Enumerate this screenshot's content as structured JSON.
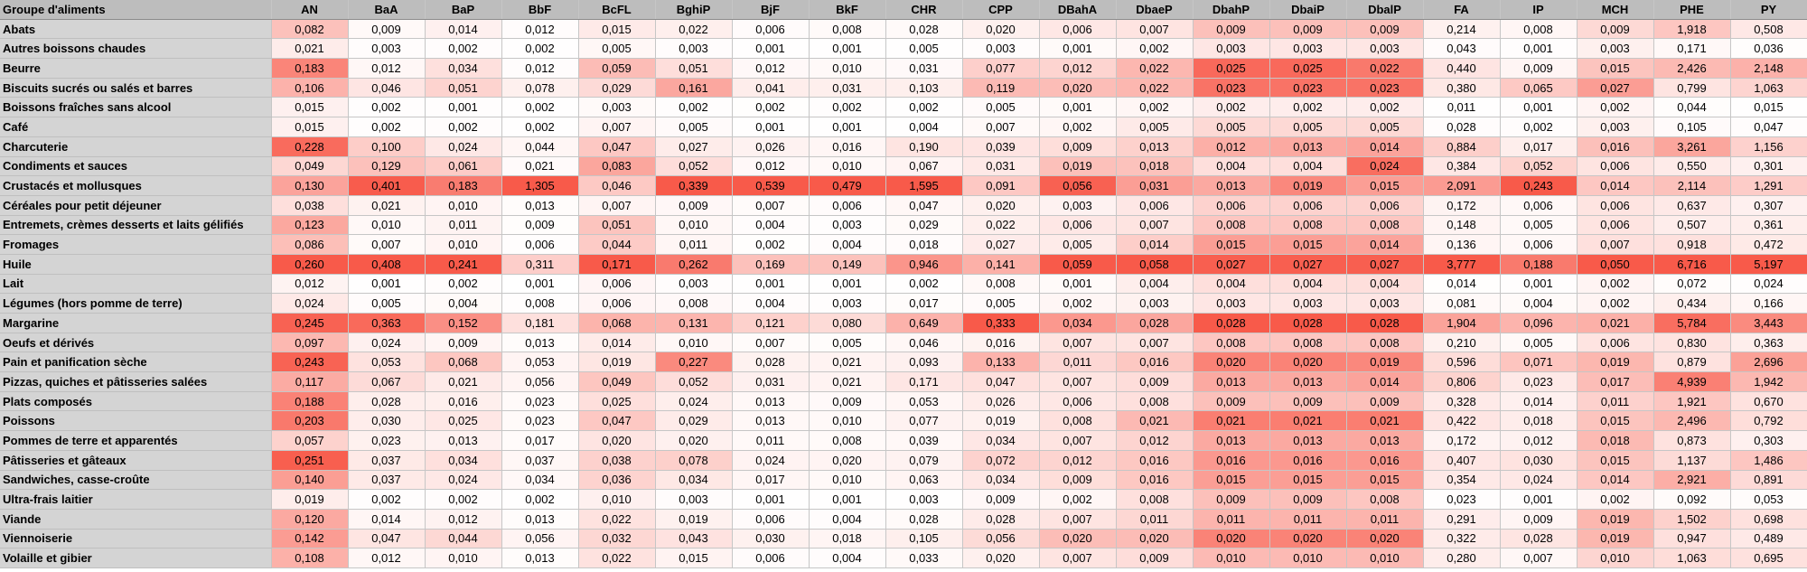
{
  "chart_data": {
    "type": "heatmap",
    "row_header": "Groupe d'aliments",
    "columns": [
      "AN",
      "BaA",
      "BaP",
      "BbF",
      "BcFL",
      "BghiP",
      "BjF",
      "BkF",
      "CHR",
      "CPP",
      "DBahA",
      "DbaeP",
      "DbahP",
      "DbaiP",
      "DbalP",
      "FA",
      "IP",
      "MCH",
      "PHE",
      "PY"
    ],
    "rows": [
      {
        "name": "Abats",
        "values": [
          "0,082",
          "0,009",
          "0,014",
          "0,012",
          "0,015",
          "0,022",
          "0,006",
          "0,008",
          "0,028",
          "0,020",
          "0,006",
          "0,007",
          "0,009",
          "0,009",
          "0,009",
          "0,214",
          "0,008",
          "0,009",
          "1,918",
          "0,508"
        ]
      },
      {
        "name": "Autres boissons chaudes",
        "values": [
          "0,021",
          "0,003",
          "0,002",
          "0,002",
          "0,005",
          "0,003",
          "0,001",
          "0,001",
          "0,005",
          "0,003",
          "0,001",
          "0,002",
          "0,003",
          "0,003",
          "0,003",
          "0,043",
          "0,001",
          "0,003",
          "0,171",
          "0,036"
        ]
      },
      {
        "name": "Beurre",
        "values": [
          "0,183",
          "0,012",
          "0,034",
          "0,012",
          "0,059",
          "0,051",
          "0,012",
          "0,010",
          "0,031",
          "0,077",
          "0,012",
          "0,022",
          "0,025",
          "0,025",
          "0,022",
          "0,440",
          "0,009",
          "0,015",
          "2,426",
          "2,148"
        ]
      },
      {
        "name": "Biscuits sucrés ou salés et barres",
        "values": [
          "0,106",
          "0,046",
          "0,051",
          "0,078",
          "0,029",
          "0,161",
          "0,041",
          "0,031",
          "0,103",
          "0,119",
          "0,020",
          "0,022",
          "0,023",
          "0,023",
          "0,023",
          "0,380",
          "0,065",
          "0,027",
          "0,799",
          "1,063"
        ]
      },
      {
        "name": "Boissons fraîches sans alcool",
        "values": [
          "0,015",
          "0,002",
          "0,001",
          "0,002",
          "0,003",
          "0,002",
          "0,002",
          "0,002",
          "0,002",
          "0,005",
          "0,001",
          "0,002",
          "0,002",
          "0,002",
          "0,002",
          "0,011",
          "0,001",
          "0,002",
          "0,044",
          "0,015"
        ]
      },
      {
        "name": "Café",
        "values": [
          "0,015",
          "0,002",
          "0,002",
          "0,002",
          "0,007",
          "0,005",
          "0,001",
          "0,001",
          "0,004",
          "0,007",
          "0,002",
          "0,005",
          "0,005",
          "0,005",
          "0,005",
          "0,028",
          "0,002",
          "0,003",
          "0,105",
          "0,047"
        ]
      },
      {
        "name": "Charcuterie",
        "values": [
          "0,228",
          "0,100",
          "0,024",
          "0,044",
          "0,047",
          "0,027",
          "0,026",
          "0,016",
          "0,190",
          "0,039",
          "0,009",
          "0,013",
          "0,012",
          "0,013",
          "0,014",
          "0,884",
          "0,017",
          "0,016",
          "3,261",
          "1,156"
        ]
      },
      {
        "name": "Condiments et sauces",
        "values": [
          "0,049",
          "0,129",
          "0,061",
          "0,021",
          "0,083",
          "0,052",
          "0,012",
          "0,010",
          "0,067",
          "0,031",
          "0,019",
          "0,018",
          "0,004",
          "0,004",
          "0,024",
          "0,384",
          "0,052",
          "0,006",
          "0,550",
          "0,301"
        ]
      },
      {
        "name": "Crustacés et mollusques",
        "values": [
          "0,130",
          "0,401",
          "0,183",
          "1,305",
          "0,046",
          "0,339",
          "0,539",
          "0,479",
          "1,595",
          "0,091",
          "0,056",
          "0,031",
          "0,013",
          "0,019",
          "0,015",
          "2,091",
          "0,243",
          "0,014",
          "2,114",
          "1,291"
        ]
      },
      {
        "name": "Céréales pour petit déjeuner",
        "values": [
          "0,038",
          "0,021",
          "0,010",
          "0,013",
          "0,007",
          "0,009",
          "0,007",
          "0,006",
          "0,047",
          "0,020",
          "0,003",
          "0,006",
          "0,006",
          "0,006",
          "0,006",
          "0,172",
          "0,006",
          "0,006",
          "0,637",
          "0,307"
        ]
      },
      {
        "name": "Entremets, crèmes desserts et laits gélifiés",
        "values": [
          "0,123",
          "0,010",
          "0,011",
          "0,009",
          "0,051",
          "0,010",
          "0,004",
          "0,003",
          "0,029",
          "0,022",
          "0,006",
          "0,007",
          "0,008",
          "0,008",
          "0,008",
          "0,148",
          "0,005",
          "0,006",
          "0,507",
          "0,361"
        ]
      },
      {
        "name": "Fromages",
        "values": [
          "0,086",
          "0,007",
          "0,010",
          "0,006",
          "0,044",
          "0,011",
          "0,002",
          "0,004",
          "0,018",
          "0,027",
          "0,005",
          "0,014",
          "0,015",
          "0,015",
          "0,014",
          "0,136",
          "0,006",
          "0,007",
          "0,918",
          "0,472"
        ]
      },
      {
        "name": "Huile",
        "values": [
          "0,260",
          "0,408",
          "0,241",
          "0,311",
          "0,171",
          "0,262",
          "0,169",
          "0,149",
          "0,946",
          "0,141",
          "0,059",
          "0,058",
          "0,027",
          "0,027",
          "0,027",
          "3,777",
          "0,188",
          "0,050",
          "6,716",
          "5,197"
        ]
      },
      {
        "name": "Lait",
        "values": [
          "0,012",
          "0,001",
          "0,002",
          "0,001",
          "0,006",
          "0,003",
          "0,001",
          "0,001",
          "0,002",
          "0,008",
          "0,001",
          "0,004",
          "0,004",
          "0,004",
          "0,004",
          "0,014",
          "0,001",
          "0,002",
          "0,072",
          "0,024"
        ]
      },
      {
        "name": "Légumes (hors pomme de terre)",
        "values": [
          "0,024",
          "0,005",
          "0,004",
          "0,008",
          "0,006",
          "0,008",
          "0,004",
          "0,003",
          "0,017",
          "0,005",
          "0,002",
          "0,003",
          "0,003",
          "0,003",
          "0,003",
          "0,081",
          "0,004",
          "0,002",
          "0,434",
          "0,166"
        ]
      },
      {
        "name": "Margarine",
        "values": [
          "0,245",
          "0,363",
          "0,152",
          "0,181",
          "0,068",
          "0,131",
          "0,121",
          "0,080",
          "0,649",
          "0,333",
          "0,034",
          "0,028",
          "0,028",
          "0,028",
          "0,028",
          "1,904",
          "0,096",
          "0,021",
          "5,784",
          "3,443"
        ]
      },
      {
        "name": "Oeufs et dérivés",
        "values": [
          "0,097",
          "0,024",
          "0,009",
          "0,013",
          "0,014",
          "0,010",
          "0,007",
          "0,005",
          "0,046",
          "0,016",
          "0,007",
          "0,007",
          "0,008",
          "0,008",
          "0,008",
          "0,210",
          "0,005",
          "0,006",
          "0,830",
          "0,363"
        ]
      },
      {
        "name": "Pain et panification sèche",
        "values": [
          "0,243",
          "0,053",
          "0,068",
          "0,053",
          "0,019",
          "0,227",
          "0,028",
          "0,021",
          "0,093",
          "0,133",
          "0,011",
          "0,016",
          "0,020",
          "0,020",
          "0,019",
          "0,596",
          "0,071",
          "0,019",
          "0,879",
          "2,696"
        ]
      },
      {
        "name": "Pizzas, quiches et pâtisseries salées",
        "values": [
          "0,117",
          "0,067",
          "0,021",
          "0,056",
          "0,049",
          "0,052",
          "0,031",
          "0,021",
          "0,171",
          "0,047",
          "0,007",
          "0,009",
          "0,013",
          "0,013",
          "0,014",
          "0,806",
          "0,023",
          "0,017",
          "4,939",
          "1,942"
        ]
      },
      {
        "name": "Plats composés",
        "values": [
          "0,188",
          "0,028",
          "0,016",
          "0,023",
          "0,025",
          "0,024",
          "0,013",
          "0,009",
          "0,053",
          "0,026",
          "0,006",
          "0,008",
          "0,009",
          "0,009",
          "0,009",
          "0,328",
          "0,014",
          "0,011",
          "1,921",
          "0,670"
        ]
      },
      {
        "name": "Poissons",
        "values": [
          "0,203",
          "0,030",
          "0,025",
          "0,023",
          "0,047",
          "0,029",
          "0,013",
          "0,010",
          "0,077",
          "0,019",
          "0,008",
          "0,021",
          "0,021",
          "0,021",
          "0,021",
          "0,422",
          "0,018",
          "0,015",
          "2,496",
          "0,792"
        ]
      },
      {
        "name": "Pommes de terre et apparentés",
        "values": [
          "0,057",
          "0,023",
          "0,013",
          "0,017",
          "0,020",
          "0,020",
          "0,011",
          "0,008",
          "0,039",
          "0,034",
          "0,007",
          "0,012",
          "0,013",
          "0,013",
          "0,013",
          "0,172",
          "0,012",
          "0,018",
          "0,873",
          "0,303"
        ]
      },
      {
        "name": "Pâtisseries et gâteaux",
        "values": [
          "0,251",
          "0,037",
          "0,034",
          "0,037",
          "0,038",
          "0,078",
          "0,024",
          "0,020",
          "0,079",
          "0,072",
          "0,012",
          "0,016",
          "0,016",
          "0,016",
          "0,016",
          "0,407",
          "0,030",
          "0,015",
          "1,137",
          "1,486"
        ]
      },
      {
        "name": "Sandwiches, casse-croûte",
        "values": [
          "0,140",
          "0,037",
          "0,024",
          "0,034",
          "0,036",
          "0,034",
          "0,017",
          "0,010",
          "0,063",
          "0,034",
          "0,009",
          "0,016",
          "0,015",
          "0,015",
          "0,015",
          "0,354",
          "0,024",
          "0,014",
          "2,921",
          "0,891"
        ]
      },
      {
        "name": "Ultra-frais laitier",
        "values": [
          "0,019",
          "0,002",
          "0,002",
          "0,002",
          "0,010",
          "0,003",
          "0,001",
          "0,001",
          "0,003",
          "0,009",
          "0,002",
          "0,008",
          "0,009",
          "0,009",
          "0,008",
          "0,023",
          "0,001",
          "0,002",
          "0,092",
          "0,053"
        ]
      },
      {
        "name": "Viande",
        "values": [
          "0,120",
          "0,014",
          "0,012",
          "0,013",
          "0,022",
          "0,019",
          "0,006",
          "0,004",
          "0,028",
          "0,028",
          "0,007",
          "0,011",
          "0,011",
          "0,011",
          "0,011",
          "0,291",
          "0,009",
          "0,019",
          "1,502",
          "0,698"
        ]
      },
      {
        "name": "Viennoiserie",
        "values": [
          "0,142",
          "0,047",
          "0,044",
          "0,056",
          "0,032",
          "0,043",
          "0,030",
          "0,018",
          "0,105",
          "0,056",
          "0,020",
          "0,020",
          "0,020",
          "0,020",
          "0,020",
          "0,322",
          "0,028",
          "0,019",
          "0,947",
          "0,489"
        ]
      },
      {
        "name": "Volaille et gibier",
        "values": [
          "0,108",
          "0,012",
          "0,010",
          "0,013",
          "0,022",
          "0,015",
          "0,006",
          "0,004",
          "0,033",
          "0,020",
          "0,007",
          "0,009",
          "0,010",
          "0,010",
          "0,010",
          "0,280",
          "0,007",
          "0,010",
          "1,063",
          "0,695"
        ]
      }
    ],
    "color_scale": {
      "low": "#ffffff",
      "high": "#f85a4a",
      "scaled_per": "column"
    }
  }
}
